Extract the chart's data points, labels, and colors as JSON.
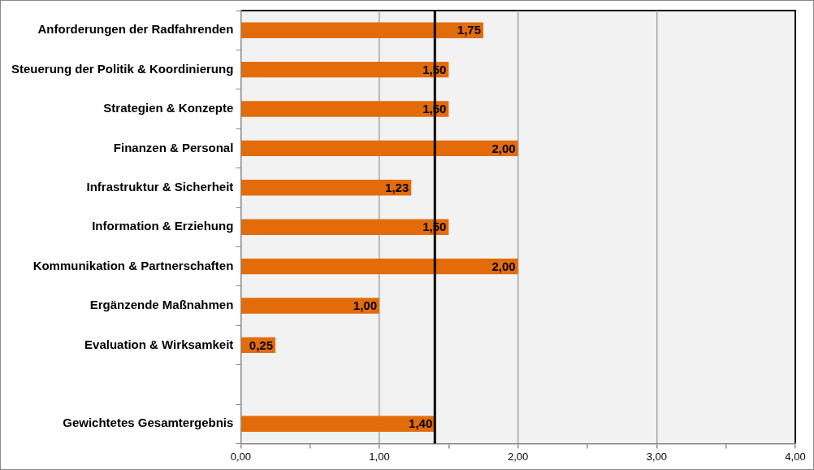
{
  "chart_data": {
    "type": "bar",
    "orientation": "horizontal",
    "categories": [
      "Anforderungen der Radfahrenden",
      "Steuerung der Politik & Koordinierung",
      "Strategien & Konzepte",
      "Finanzen & Personal",
      "Infrastruktur & Sicherheit",
      "Information & Erziehung",
      "Kommunikation & Partnerschaften",
      "Ergänzende Maßnahmen",
      "Evaluation & Wirksamkeit",
      null,
      "Gewichtetes Gesamtergebnis"
    ],
    "values": [
      1.75,
      1.5,
      1.5,
      2.0,
      1.23,
      1.5,
      2.0,
      1.0,
      0.25,
      null,
      1.4
    ],
    "value_labels": [
      "1,75",
      "1,50",
      "1,50",
      "2,00",
      "1,23",
      "1,50",
      "2,00",
      "1,00",
      "0,25",
      null,
      "1,40"
    ],
    "color": "#e36c0a",
    "xlim": [
      0,
      4
    ],
    "xticks": [
      {
        "value": 0,
        "label": "0,00"
      },
      {
        "value": 0.5,
        "label": null
      },
      {
        "value": 1,
        "label": "1,00"
      },
      {
        "value": 1.5,
        "label": null
      },
      {
        "value": 2,
        "label": "2,00"
      },
      {
        "value": 2.5,
        "label": null
      },
      {
        "value": 3,
        "label": "3,00"
      },
      {
        "value": 3.5,
        "label": null
      },
      {
        "value": 4,
        "label": "4,00"
      }
    ],
    "grid": "x",
    "legend": false,
    "ref_lines": [
      {
        "axis": "x",
        "value": 1.4,
        "color": "#000000"
      }
    ]
  }
}
